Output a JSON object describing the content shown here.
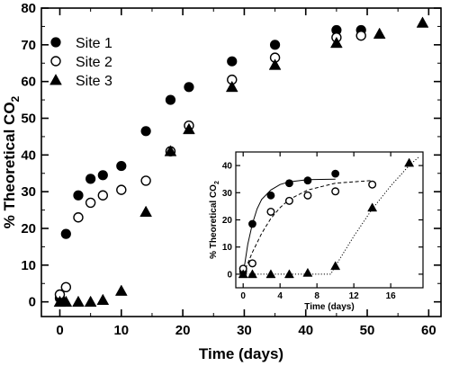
{
  "chart_data": [
    {
      "type": "scatter",
      "xlabel": "Time (days)",
      "ylabel": "% Theoretical CO",
      "ylabel_subscript": "2",
      "xlim": [
        -3,
        62
      ],
      "ylim": [
        -4,
        80
      ],
      "xticks": [
        0,
        10,
        20,
        30,
        40,
        50,
        60
      ],
      "yticks": [
        0,
        10,
        20,
        30,
        40,
        50,
        60,
        70,
        80
      ],
      "legend_position": "top-left",
      "series": [
        {
          "name": "Site 1",
          "marker": "filled-circle",
          "points": [
            [
              0,
              1
            ],
            [
              1,
              18.5
            ],
            [
              3,
              29
            ],
            [
              5,
              33.5
            ],
            [
              7,
              34.5
            ],
            [
              10,
              37
            ],
            [
              14,
              46.5
            ],
            [
              18,
              55
            ],
            [
              21,
              58.5
            ],
            [
              28,
              65.5
            ],
            [
              35,
              70
            ],
            [
              45,
              74
            ],
            [
              49,
              74
            ]
          ]
        },
        {
          "name": "Site 2",
          "marker": "open-circle",
          "points": [
            [
              0,
              2
            ],
            [
              1,
              4
            ],
            [
              3,
              23
            ],
            [
              5,
              27
            ],
            [
              7,
              29
            ],
            [
              10,
              30.5
            ],
            [
              14,
              33
            ],
            [
              18,
              41
            ],
            [
              21,
              48
            ],
            [
              28,
              60.5
            ],
            [
              35,
              66.5
            ],
            [
              45,
              72
            ],
            [
              49,
              72.5
            ]
          ]
        },
        {
          "name": "Site 3",
          "marker": "filled-triangle",
          "points": [
            [
              0,
              0
            ],
            [
              1,
              0
            ],
            [
              3,
              0
            ],
            [
              5,
              0
            ],
            [
              7,
              0.5
            ],
            [
              10,
              3
            ],
            [
              14,
              24.5
            ],
            [
              18,
              41
            ],
            [
              21,
              47
            ],
            [
              28,
              58.5
            ],
            [
              35,
              64.5
            ],
            [
              45,
              70.5
            ],
            [
              52,
              73
            ],
            [
              59,
              76
            ]
          ]
        }
      ]
    },
    {
      "type": "scatter",
      "role": "inset",
      "xlabel": "Time (days)",
      "ylabel": "% Theoretical CO",
      "ylabel_subscript": "2",
      "xlim": [
        -0.8,
        19.5
      ],
      "ylim": [
        -5,
        45
      ],
      "xticks": [
        0,
        4,
        8,
        12,
        16
      ],
      "yticks": [
        0,
        10,
        20,
        30,
        40
      ],
      "series": [
        {
          "name": "Site 1",
          "marker": "filled-circle",
          "points": [
            [
              0,
              1
            ],
            [
              1,
              18.5
            ],
            [
              3,
              29
            ],
            [
              5,
              33.5
            ],
            [
              7,
              34.5
            ],
            [
              10,
              37
            ]
          ],
          "fit": "solid",
          "fit_points": [
            [
              0,
              0
            ],
            [
              0.5,
              11
            ],
            [
              1,
              18.5
            ],
            [
              1.5,
              24
            ],
            [
              2,
              27.5
            ],
            [
              3,
              31
            ],
            [
              4,
              33
            ],
            [
              5,
              34
            ],
            [
              7,
              34.8
            ],
            [
              10,
              35
            ]
          ]
        },
        {
          "name": "Site 2",
          "marker": "open-circle",
          "points": [
            [
              0,
              2
            ],
            [
              1,
              4
            ],
            [
              3,
              23
            ],
            [
              5,
              27
            ],
            [
              7,
              29
            ],
            [
              10,
              30.5
            ],
            [
              14,
              33
            ]
          ],
          "fit": "dashed",
          "fit_points": [
            [
              0,
              0
            ],
            [
              1,
              8
            ],
            [
              2,
              15
            ],
            [
              3,
              20.5
            ],
            [
              4,
              24.5
            ],
            [
              5,
              27.5
            ],
            [
              7,
              31
            ],
            [
              10,
              33.5
            ],
            [
              14,
              34.5
            ]
          ]
        },
        {
          "name": "Site 3",
          "marker": "filled-triangle",
          "points": [
            [
              0,
              0
            ],
            [
              1,
              0
            ],
            [
              3,
              0
            ],
            [
              5,
              0
            ],
            [
              7,
              0.5
            ],
            [
              10,
              3
            ],
            [
              14,
              24.5
            ],
            [
              18,
              41
            ]
          ],
          "fit": "dotted",
          "fit_points": [
            [
              0,
              0
            ],
            [
              9.5,
              0
            ],
            [
              10,
              3
            ],
            [
              12,
              14
            ],
            [
              14,
              24
            ],
            [
              16,
              32.5
            ],
            [
              18,
              40
            ],
            [
              19,
              43
            ]
          ]
        }
      ]
    }
  ]
}
